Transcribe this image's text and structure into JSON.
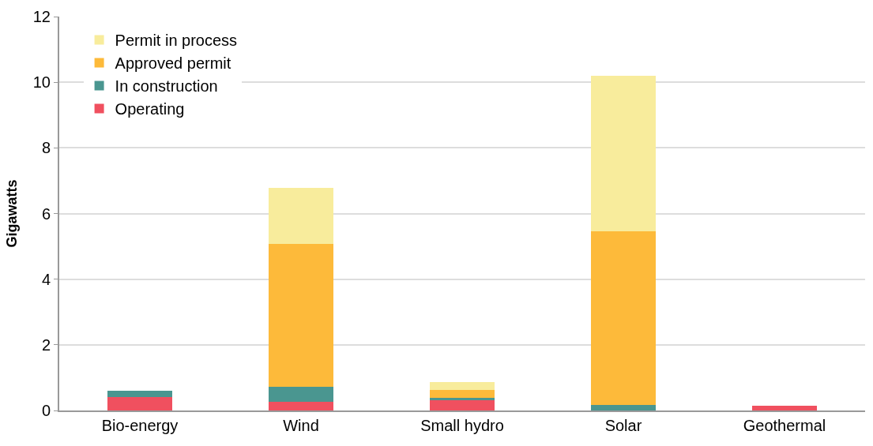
{
  "chart_data": {
    "type": "bar",
    "stacked": true,
    "ylabel": "Gigawatts",
    "categories": [
      "Bio-energy",
      "Wind",
      "Small hydro",
      "Solar",
      "Geothermal"
    ],
    "series": [
      {
        "name": "Operating",
        "color": "#f0505f",
        "values": [
          0.42,
          0.26,
          0.32,
          0,
          0.15
        ]
      },
      {
        "name": "In construction",
        "color": "#4a9690",
        "values": [
          0.18,
          0.46,
          0.07,
          0.17,
          0
        ]
      },
      {
        "name": "Approved permit",
        "color": "#fdba3a",
        "values": [
          0,
          4.36,
          0.23,
          5.3,
          0
        ]
      },
      {
        "name": "Permit in process",
        "color": "#f8ec9c",
        "values": [
          0,
          1.69,
          0.25,
          4.72,
          0
        ]
      }
    ],
    "ylim": [
      0,
      12
    ],
    "yticks": [
      0,
      2,
      4,
      6,
      8,
      10,
      12
    ],
    "grid": "y",
    "legend": "top left"
  }
}
